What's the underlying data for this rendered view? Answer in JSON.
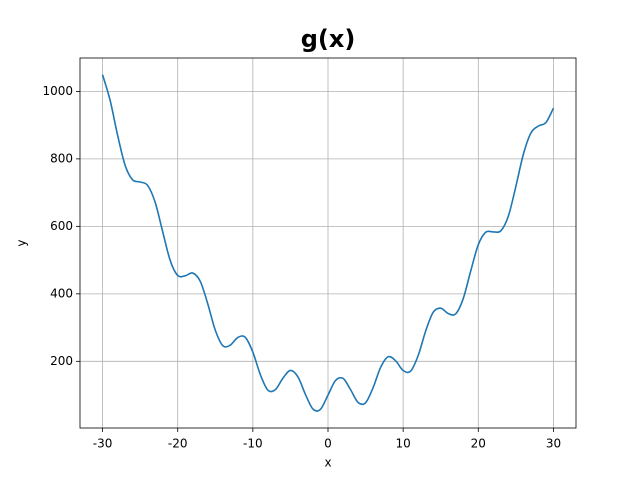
{
  "chart_data": {
    "type": "line",
    "title": "g(x)",
    "x_label": "x",
    "y_label": "y",
    "x": [
      -30,
      -29,
      -28,
      -27,
      -26,
      -25,
      -24,
      -23,
      -22,
      -21,
      -20,
      -19,
      -18,
      -17,
      -16,
      -15,
      -14,
      -13,
      -12,
      -11,
      -10,
      -9,
      -8,
      -7,
      -6,
      -5,
      -4,
      -3,
      -2,
      -1,
      0,
      1,
      2,
      3,
      4,
      5,
      6,
      7,
      8,
      9,
      10,
      11,
      12,
      13,
      14,
      15,
      16,
      17,
      18,
      19,
      20,
      21,
      22,
      23,
      24,
      25,
      26,
      27,
      28,
      29,
      30
    ],
    "series": [
      {
        "color": "#1f77b4",
        "values": [
          1049.4,
          974.2,
          870.5,
          781.2,
          737.9,
          731.6,
          721.3,
          671.3,
          584.4,
          499.2,
          454.4,
          453.5,
          461.6,
          437.1,
          370.4,
          292.5,
          246.5,
          248.0,
          270.8,
          271.0,
          227.2,
          160.4,
          114.5,
          116.1,
          150.0,
          172.9,
          153.8,
          101.9,
          58.5,
          57.9,
          100,
          143.1,
          149.5,
          116.1,
          78.2,
          77.1,
          122.0,
          181.9,
          213.5,
          201.6,
          172.8,
          171.0,
          217.2,
          290.0,
          345.5,
          357.5,
          341.6,
          340.9,
          386.4,
          468.5,
          545.6,
          582.8,
          583.6,
          586.7,
          630.7,
          718.4,
          814.1,
          876.8,
          897.5,
          907.8,
          950.6
        ]
      }
    ],
    "xlim": [
      -33,
      33
    ],
    "ylim": [
      2.4,
      1099
    ],
    "xticks": [
      -30,
      -20,
      -10,
      0,
      10,
      20,
      30
    ],
    "yticks": [
      200,
      400,
      600,
      800,
      1000
    ],
    "grid": true
  }
}
